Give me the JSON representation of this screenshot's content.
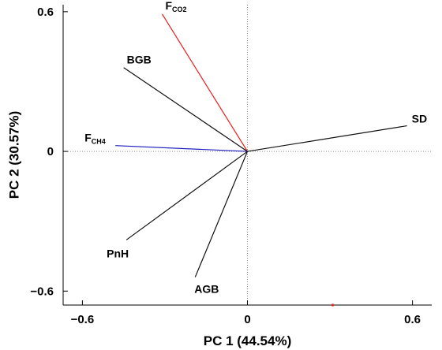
{
  "chart_data": {
    "type": "biplot",
    "xlabel": "PC 1 (44.54%)",
    "ylabel": "PC 2 (30.57%)",
    "xlim": [
      -0.67,
      0.67
    ],
    "ylim": [
      -0.66,
      0.63
    ],
    "xticks": [
      {
        "value": -0.6,
        "label": "-0.6"
      },
      {
        "value": 0,
        "label": "0"
      },
      {
        "value": 0.6,
        "label": "0.6"
      }
    ],
    "yticks": [
      {
        "value": -0.6,
        "label": "-0.6"
      },
      {
        "value": 0,
        "label": "0"
      },
      {
        "value": 0.6,
        "label": "0.6"
      }
    ],
    "vectors": [
      {
        "key": "fco2",
        "label": "F",
        "sub": "CO2",
        "x": -0.31,
        "y": 0.59,
        "color": "#ee1c1c"
      },
      {
        "key": "bgb",
        "label": "BGB",
        "sub": "",
        "x": -0.45,
        "y": 0.36,
        "color": "#111111"
      },
      {
        "key": "sd",
        "label": "SD",
        "sub": "",
        "x": 0.58,
        "y": 0.11,
        "color": "#111111"
      },
      {
        "key": "fch4",
        "label": "F",
        "sub": "CH4",
        "x": -0.48,
        "y": 0.025,
        "color": "#1f1fbf"
      },
      {
        "key": "pnh",
        "label": "PnH",
        "sub": "",
        "x": -0.44,
        "y": -0.38,
        "color": "#111111"
      },
      {
        "key": "agb",
        "label": "AGB",
        "sub": "",
        "x": -0.19,
        "y": -0.54,
        "color": "#111111"
      }
    ],
    "points": [
      {
        "x": 0.31,
        "y": -0.66,
        "color": "#ee1c1c"
      }
    ],
    "zero_lines": true,
    "grid": false
  }
}
